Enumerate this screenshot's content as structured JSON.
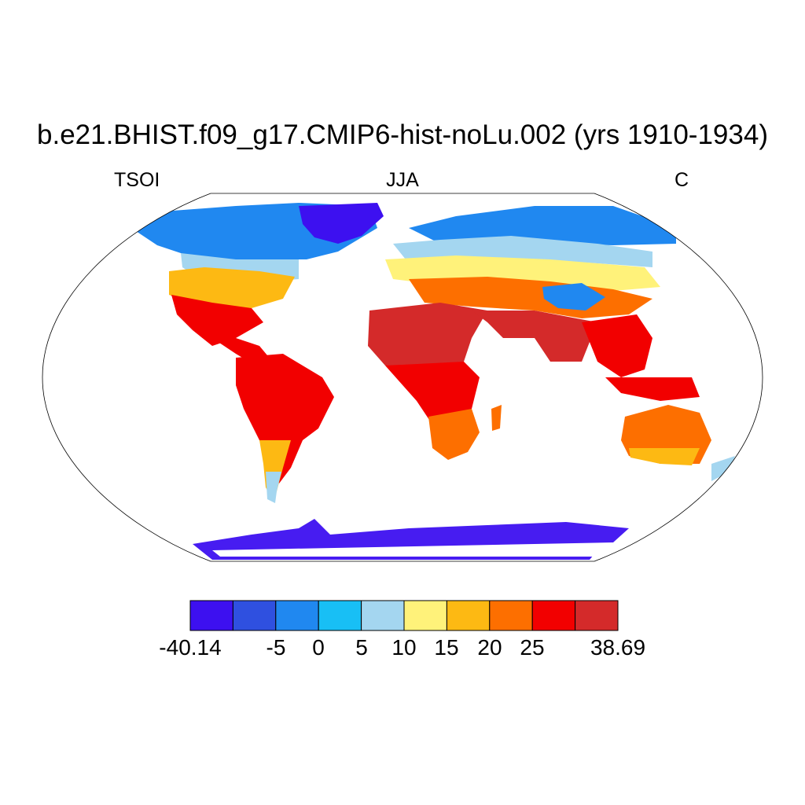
{
  "title": "b.e21.BHIST.f09_g17.CMIP6-hist-noLu.002 (yrs 1910-1934)",
  "left_label": "TSOI",
  "center_label": "JJA",
  "right_label": "C",
  "chart_data": {
    "type": "heatmap",
    "projection": "Robinson",
    "variable": "TSOI",
    "season": "JJA",
    "units": "C",
    "colorbar": {
      "levels": [
        -40.14,
        -20,
        -5,
        0,
        5,
        10,
        15,
        20,
        25,
        30,
        38.69
      ],
      "tick_labels": [
        "-40.14",
        "-5",
        "0",
        "5",
        "10",
        "15",
        "20",
        "25",
        "38.69"
      ],
      "colors": [
        "#3d10f0",
        "#2f50e0",
        "#2088f0",
        "#18bff5",
        "#a4d6f0",
        "#fff27a",
        "#fdb913",
        "#fd6f00",
        "#f20000",
        "#d42a2a"
      ]
    }
  }
}
